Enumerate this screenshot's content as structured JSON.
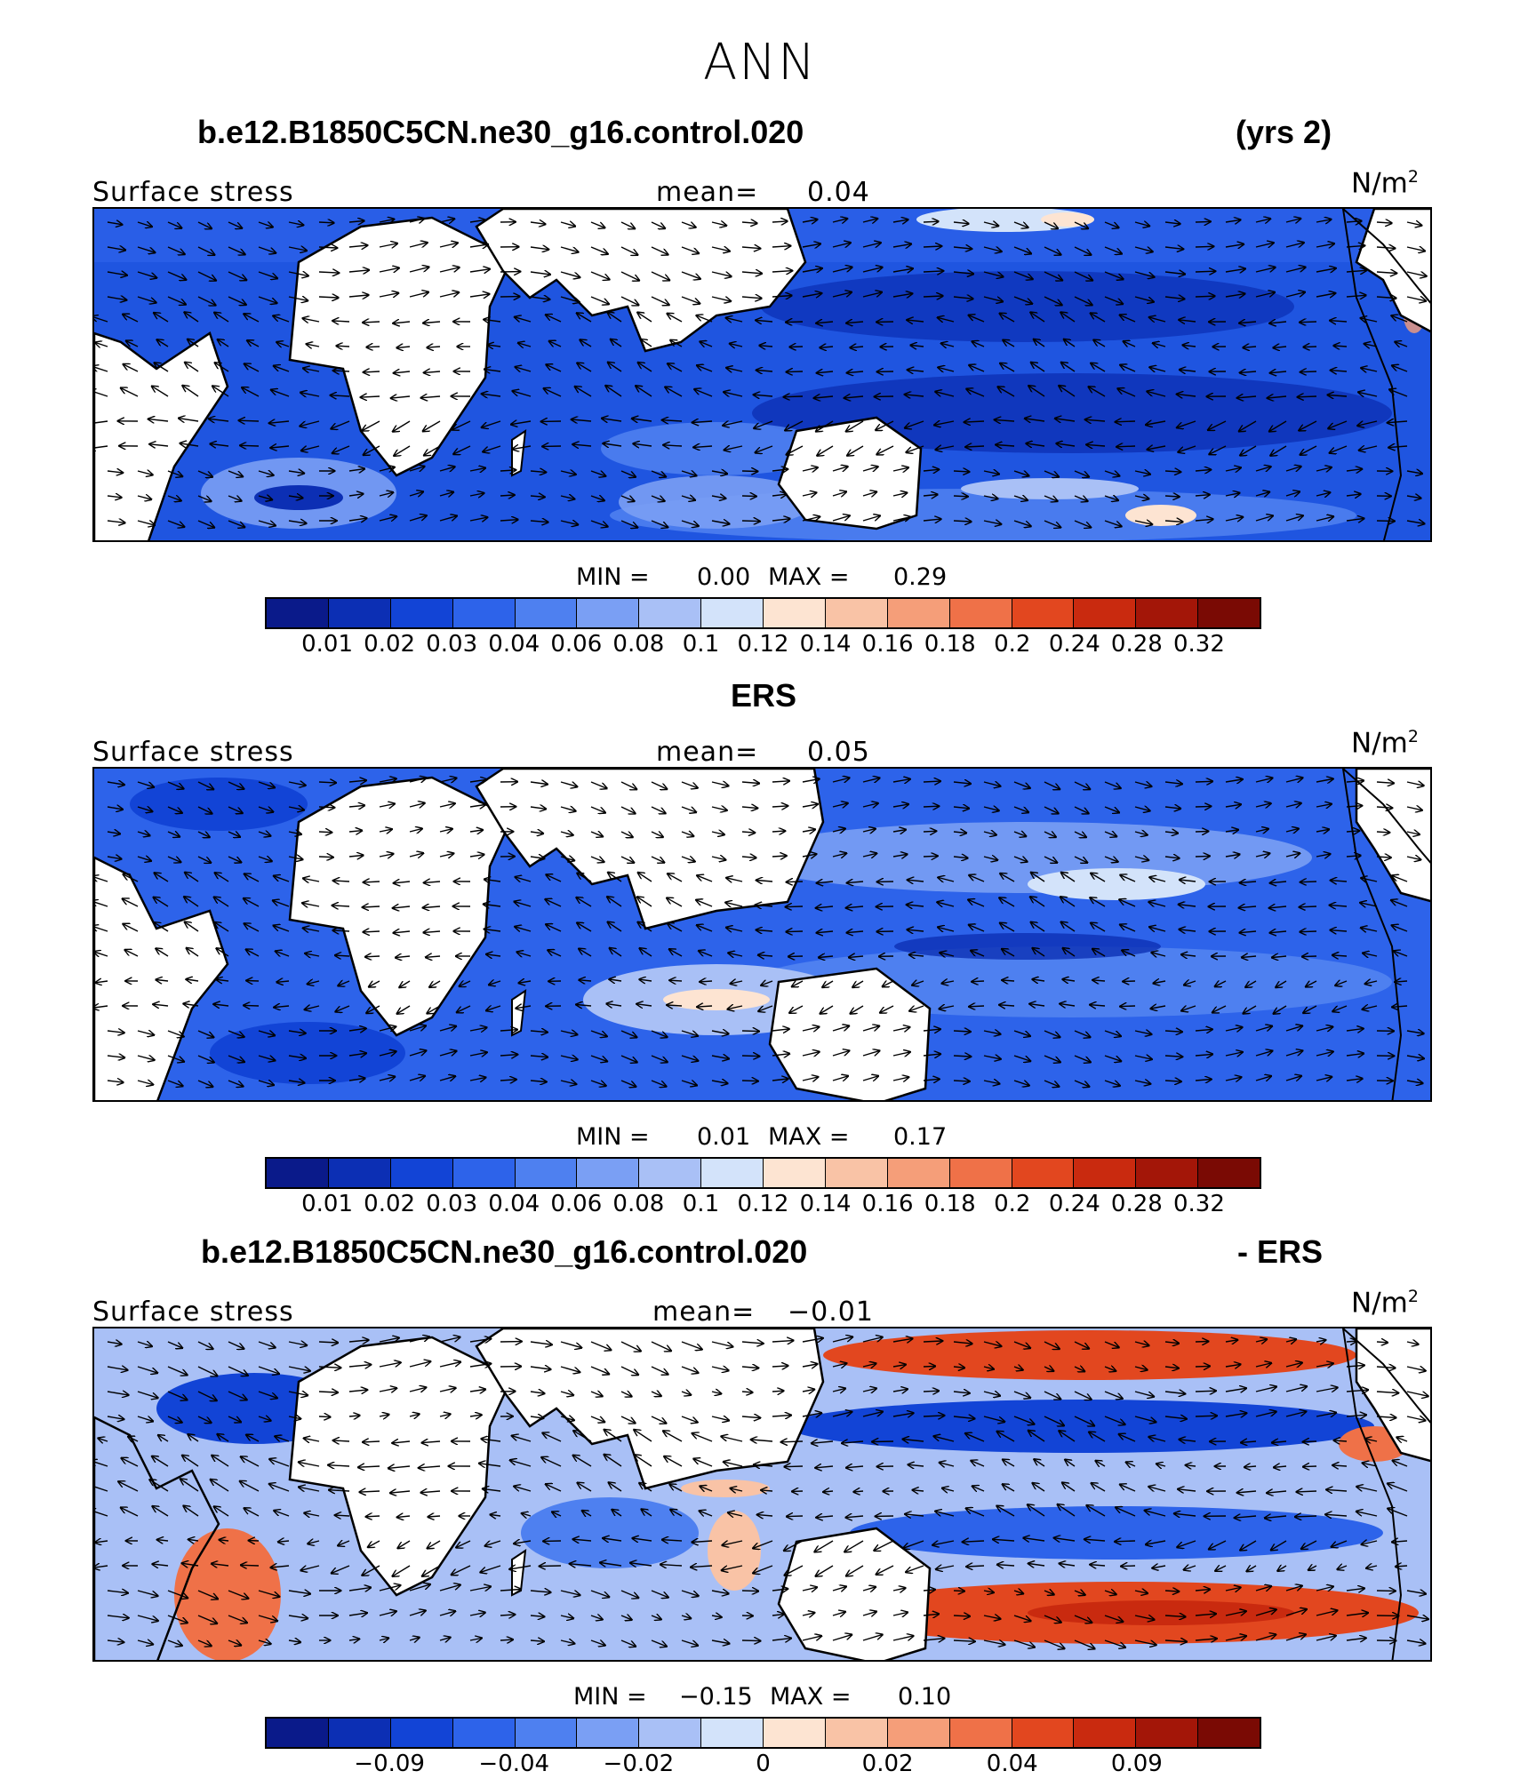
{
  "figure": {
    "season": "ANN",
    "case_name": "b.e12.B1850C5CN.ne30_g16.control.020",
    "years": "(yrs 2)",
    "obs_name": "ERS",
    "diff_title_case": "b.e12.B1850C5CN.ne30_g16.control.020",
    "diff_title_suffix": "- ERS"
  },
  "panels": [
    {
      "id": "model",
      "variable": "Surface stress",
      "mean_label": "mean=",
      "mean": "0.04",
      "units": "N/m",
      "units_exp": "2",
      "min_label": "MIN =",
      "min": "0.00",
      "max_label": "MAX =",
      "max": "0.29"
    },
    {
      "id": "obs",
      "variable": "Surface stress",
      "mean_label": "mean=",
      "mean": "0.05",
      "units": "N/m",
      "units_exp": "2",
      "min_label": "MIN =",
      "min": "0.01",
      "max_label": "MAX =",
      "max": "0.17"
    },
    {
      "id": "diff",
      "variable": "Surface stress",
      "mean_label": "mean=",
      "mean": "−0.01",
      "units": "N/m",
      "units_exp": "2",
      "min_label": "MIN =",
      "min": "−0.15",
      "max_label": "MAX =",
      "max": "0.10"
    }
  ],
  "colorbars": {
    "colors": [
      "#0a1a8a",
      "#0c2fb4",
      "#1244d6",
      "#2d63ea",
      "#4e80f0",
      "#7a9ff4",
      "#a9c0f6",
      "#d3e3fa",
      "#fde4d2",
      "#f9c3a6",
      "#f59e79",
      "#ef7148",
      "#e2471f",
      "#c92a0f",
      "#a31608",
      "#7a0a04"
    ],
    "abs_ticks": [
      "0.01",
      "0.02",
      "0.03",
      "0.04",
      "0.06",
      "0.08",
      "0.1",
      "0.12",
      "0.14",
      "0.16",
      "0.18",
      "0.2",
      "0.24",
      "0.28",
      "0.32"
    ],
    "diff_ticks": [
      "−0.09",
      "−0.04",
      "−0.02",
      "0",
      "0.02",
      "0.04",
      "0.09"
    ],
    "diff_tick_slots": [
      2,
      4,
      6,
      8,
      10,
      12,
      14
    ]
  }
}
